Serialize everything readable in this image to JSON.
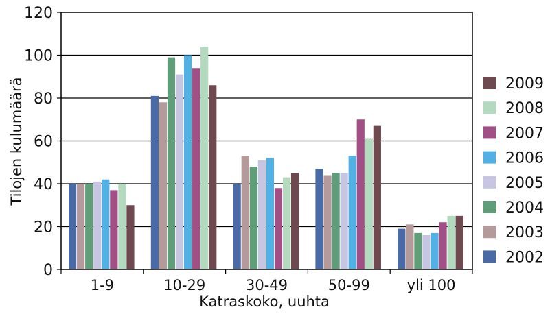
{
  "chart_data": {
    "type": "bar",
    "xlabel": "Katraskoko, uuhta",
    "ylabel": "Tilojen kulumäärä",
    "ylim": [
      0,
      120
    ],
    "yticks": [
      0,
      20,
      40,
      60,
      80,
      100,
      120
    ],
    "categories": [
      "1-9",
      "10-29",
      "30-49",
      "50-99",
      "yli 100"
    ],
    "grid": true,
    "legend_position": "right",
    "legend_order": [
      "2009",
      "2008",
      "2007",
      "2006",
      "2005",
      "2004",
      "2003",
      "2002"
    ],
    "series": [
      {
        "name": "2002",
        "color": "#4a6aa6",
        "values": [
          40,
          81,
          40,
          47,
          19
        ]
      },
      {
        "name": "2003",
        "color": "#b49a9a",
        "values": [
          40,
          78,
          53,
          44,
          21
        ]
      },
      {
        "name": "2004",
        "color": "#5f9e78",
        "values": [
          40,
          99,
          48,
          45,
          17
        ]
      },
      {
        "name": "2005",
        "color": "#c6c6e2",
        "values": [
          41,
          91,
          51,
          45,
          16
        ]
      },
      {
        "name": "2006",
        "color": "#52b1e4",
        "values": [
          42,
          100,
          52,
          53,
          17
        ]
      },
      {
        "name": "2007",
        "color": "#a24f86",
        "values": [
          37,
          94,
          38,
          70,
          22
        ]
      },
      {
        "name": "2008",
        "color": "#b3dabf",
        "values": [
          40,
          104,
          43,
          61,
          25
        ]
      },
      {
        "name": "2009",
        "color": "#6e4a50",
        "values": [
          30,
          86,
          45,
          67,
          25
        ]
      }
    ]
  }
}
